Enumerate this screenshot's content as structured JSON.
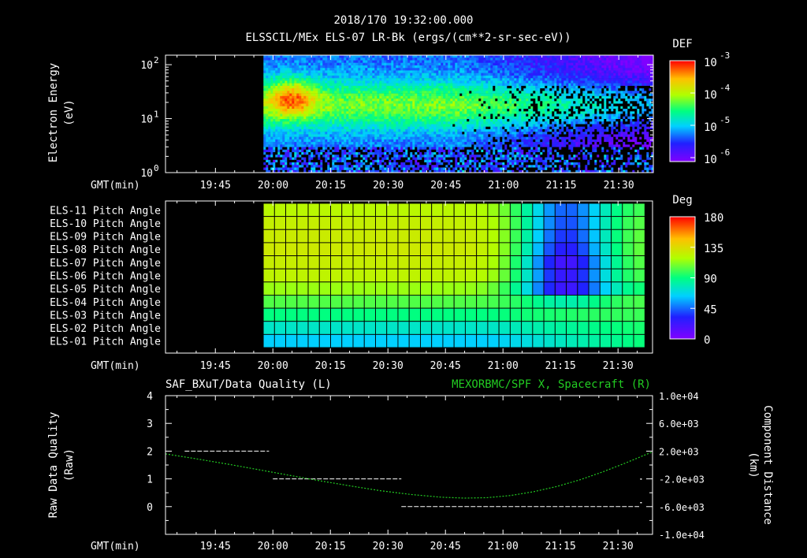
{
  "header": {
    "timestamp": "2018/170 19:32:00.000",
    "subtitle": "ELSSCIL/MEx ELS-07 LR-Bk  (ergs/(cm**2-sr-sec-eV))"
  },
  "chart_data": [
    {
      "type": "heatmap",
      "id": "energy-spectrogram",
      "ylabel": [
        "Electron Energy",
        "(eV)"
      ],
      "xlabel": "GMT(min)",
      "x_ticks": [
        "19:45",
        "20:00",
        "20:15",
        "20:30",
        "20:45",
        "21:00",
        "21:15",
        "21:30"
      ],
      "x_tick_minutes": [
        1185,
        1200,
        1215,
        1230,
        1245,
        1260,
        1275,
        1290
      ],
      "x_range_minutes": [
        1172,
        1299
      ],
      "data_range_minutes": [
        1197.5,
        1299
      ],
      "y_scale": "log",
      "y_range": [
        1,
        150
      ],
      "y_ticks": [
        1,
        10,
        100
      ],
      "y_tick_labels": [
        {
          "base": "10",
          "exp": "0"
        },
        {
          "base": "10",
          "exp": "1"
        },
        {
          "base": "10",
          "exp": "2"
        }
      ],
      "colorbar": {
        "title": "DEF",
        "scale": "log",
        "range": [
          1e-06,
          0.001
        ],
        "tick_labels": [
          {
            "base": "10",
            "exp": "-3"
          },
          {
            "base": "10",
            "exp": "-4"
          },
          {
            "base": "10",
            "exp": "-5"
          },
          {
            "base": "10",
            "exp": "-6"
          }
        ]
      }
    },
    {
      "type": "heatmap",
      "id": "pitch-angle",
      "xlabel": "GMT(min)",
      "x_ticks": [
        "19:45",
        "20:00",
        "20:15",
        "20:30",
        "20:45",
        "21:00",
        "21:15",
        "21:30"
      ],
      "x_tick_minutes": [
        1185,
        1200,
        1215,
        1230,
        1245,
        1260,
        1275,
        1290
      ],
      "x_range_minutes": [
        1172,
        1299
      ],
      "data_range_minutes": [
        1197.5,
        1297
      ],
      "rows": [
        "ELS-11 Pitch Angle",
        "ELS-10 Pitch Angle",
        "ELS-09 Pitch Angle",
        "ELS-08 Pitch Angle",
        "ELS-07 Pitch Angle",
        "ELS-06 Pitch Angle",
        "ELS-05 Pitch Angle",
        "ELS-04 Pitch Angle",
        "ELS-03 Pitch Angle",
        "ELS-02 Pitch Angle",
        "ELS-01 Pitch Angle"
      ],
      "row_base_values_deg": [
        122,
        126,
        128,
        129,
        127,
        124,
        115,
        103,
        90,
        75,
        63
      ],
      "colorbar": {
        "title": "Deg",
        "range": [
          0,
          180
        ],
        "tick_labels": [
          "180",
          "135",
          "90",
          "45",
          "0"
        ],
        "tick_values": [
          180,
          135,
          90,
          45,
          0
        ]
      }
    },
    {
      "type": "line",
      "id": "quality-and-distance",
      "title_left": "SAF_BXuT/Data Quality (L)",
      "title_right": "MEXORBMC/SPF X, Spacecraft (R)",
      "ylabel_left": [
        "Raw Data Quality",
        "(Raw)"
      ],
      "ylabel_right": [
        "Component Distance",
        "(km)"
      ],
      "xlabel": "GMT(min)",
      "x_ticks": [
        "19:45",
        "20:00",
        "20:15",
        "20:30",
        "20:45",
        "21:00",
        "21:15",
        "21:30"
      ],
      "x_tick_minutes": [
        1185,
        1200,
        1215,
        1230,
        1245,
        1260,
        1275,
        1290
      ],
      "x_range_minutes": [
        1172,
        1299
      ],
      "y_left_range": [
        -1,
        4
      ],
      "y_left_ticks": [
        0,
        1,
        2,
        3,
        4
      ],
      "y_left_tick_labels": [
        "0",
        "1",
        "2",
        "3",
        "4"
      ],
      "y_right_range": [
        -10000,
        10000
      ],
      "y_right_ticks": [
        10000,
        6000,
        2000,
        -2000,
        -6000,
        -10000
      ],
      "y_right_tick_labels": [
        "1.0e+04",
        "6.0e+03",
        "2.0e+03",
        "-2.0e+03",
        "-6.0e+03",
        "-1.0e+04"
      ],
      "series": [
        {
          "name": "Data Quality",
          "axis": "left",
          "color": "#ffffff",
          "style": "dashed",
          "segments": [
            {
              "x": [
                1177,
                1199
              ],
              "y": 2
            },
            {
              "x": [
                1200,
                1233.5
              ],
              "y": 1
            },
            {
              "x": [
                1233.5,
                1295.5
              ],
              "y": 0
            }
          ],
          "points": [
            {
              "x": 1296,
              "y": 1
            },
            {
              "x": 1296,
              "y": 0.15
            }
          ]
        },
        {
          "name": "Spacecraft X",
          "axis": "right",
          "color": "#22cc22",
          "style": "dotted",
          "x": [
            1172,
            1180,
            1188,
            1196,
            1204,
            1212,
            1220,
            1228,
            1236,
            1244,
            1250,
            1256,
            1262,
            1268,
            1274,
            1280,
            1286,
            1292,
            1299
          ],
          "y": [
            1600,
            900,
            150,
            -650,
            -1450,
            -2250,
            -3000,
            -3700,
            -4250,
            -4650,
            -4770,
            -4700,
            -4400,
            -3850,
            -3100,
            -2150,
            -1000,
            300,
            1900
          ]
        }
      ]
    }
  ],
  "colors": {
    "background": "#000000",
    "axes": "#ffffff",
    "spacecraft_line": "#22cc22"
  }
}
